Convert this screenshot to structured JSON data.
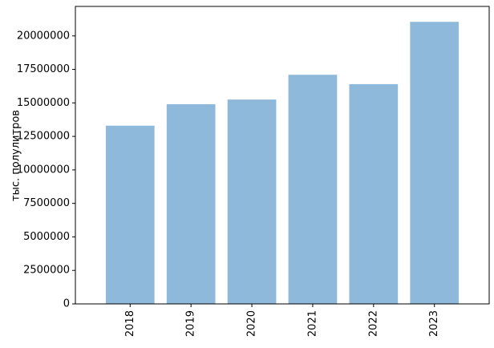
{
  "chart_data": {
    "type": "bar",
    "ylabel": "тыс. полулитров",
    "categories": [
      "2018",
      "2019",
      "2020",
      "2021",
      "2022",
      "2023"
    ],
    "values": [
      13300000,
      14900000,
      15250000,
      17100000,
      16400000,
      21050000
    ],
    "color": "#8fb9da",
    "ylim": [
      0,
      22200000
    ],
    "yticks": [
      0,
      2500000,
      5000000,
      7500000,
      10000000,
      12500000,
      15000000,
      17500000,
      20000000
    ]
  }
}
